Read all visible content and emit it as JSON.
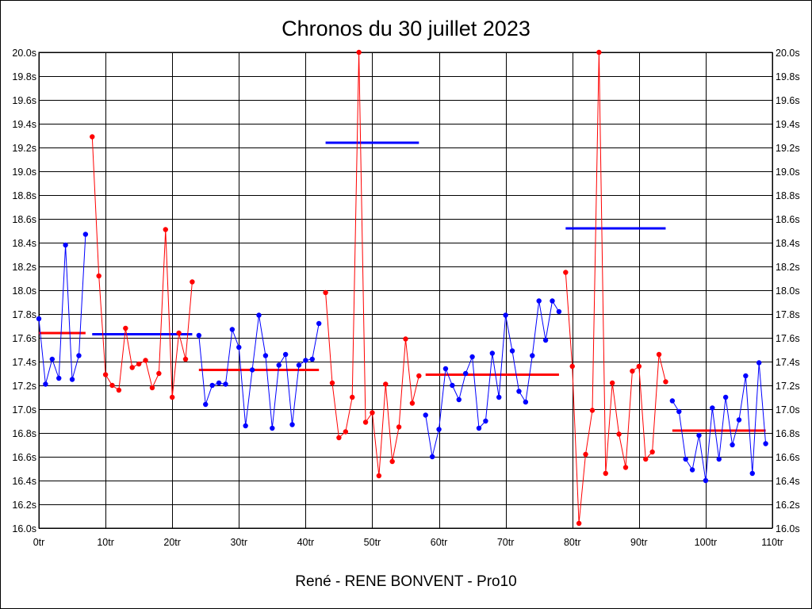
{
  "chart_data": {
    "type": "line",
    "title": "Chronos du 30 juillet 2023",
    "footer": "René - RENE BONVENT - Pro10",
    "xlabel": "",
    "ylabel": "",
    "xlim": [
      0,
      110
    ],
    "ylim": [
      16.0,
      20.0
    ],
    "grid": true,
    "x_ticks": [
      0,
      10,
      20,
      30,
      40,
      50,
      60,
      70,
      80,
      90,
      100,
      110
    ],
    "x_tick_labels": [
      "0tr",
      "10tr",
      "20tr",
      "30tr",
      "40tr",
      "50tr",
      "60tr",
      "70tr",
      "80tr",
      "90tr",
      "100tr",
      "110tr"
    ],
    "y_ticks": [
      16.0,
      16.2,
      16.4,
      16.6,
      16.8,
      17.0,
      17.2,
      17.4,
      17.6,
      17.8,
      18.0,
      18.2,
      18.4,
      18.6,
      18.8,
      19.0,
      19.2,
      19.4,
      19.6,
      19.8,
      20.0
    ],
    "y_tick_labels": [
      "16.0s",
      "16.2s",
      "16.4s",
      "16.6s",
      "16.8s",
      "17.0s",
      "17.2s",
      "17.4s",
      "17.6s",
      "17.8s",
      "18.0s",
      "18.2s",
      "18.4s",
      "18.6s",
      "18.8s",
      "19.0s",
      "19.2s",
      "19.4s",
      "19.6s",
      "19.8s",
      "20.0s"
    ],
    "colors": {
      "blue": "#0000ff",
      "red": "#ff0000",
      "grid": "#000000"
    },
    "series": [
      {
        "color": "#0000ff",
        "x": [
          0,
          1,
          2,
          3,
          4,
          5,
          6,
          7
        ],
        "y": [
          17.76,
          17.21,
          17.42,
          17.26,
          18.38,
          17.25,
          17.45,
          18.47
        ],
        "avg": {
          "x": [
            0,
            7
          ],
          "y": 17.64,
          "color": "#ff0000"
        }
      },
      {
        "color": "#ff0000",
        "x": [
          8,
          9,
          10,
          11,
          12,
          13,
          14,
          15,
          16,
          17,
          18,
          19,
          20,
          21,
          22,
          23
        ],
        "y": [
          19.29,
          18.12,
          17.29,
          17.2,
          17.16,
          17.68,
          17.35,
          17.38,
          17.41,
          17.18,
          17.3,
          18.51,
          17.1,
          17.64,
          17.42,
          18.07
        ],
        "avg": {
          "x": [
            8,
            23
          ],
          "y": 17.63,
          "color": "#0000ff"
        }
      },
      {
        "color": "#0000ff",
        "x": [
          24,
          25,
          26,
          27,
          28,
          29,
          30,
          31,
          32,
          33,
          34,
          35,
          36,
          37,
          38,
          39,
          40,
          41,
          42
        ],
        "y": [
          17.62,
          17.04,
          17.2,
          17.22,
          17.21,
          17.67,
          17.52,
          16.86,
          17.33,
          17.79,
          17.45,
          16.84,
          17.37,
          17.46,
          16.87,
          17.37,
          17.41,
          17.42,
          17.72
        ],
        "avg": {
          "x": [
            24,
            42
          ],
          "y": 17.33,
          "color": "#ff0000"
        }
      },
      {
        "color": "#ff0000",
        "x": [
          43,
          44,
          45,
          46,
          47,
          48,
          49,
          50,
          51,
          52,
          53,
          54,
          55,
          56,
          57
        ],
        "y": [
          17.98,
          17.22,
          16.76,
          16.81,
          17.1,
          20.0,
          16.89,
          16.97,
          16.44,
          17.21,
          16.56,
          16.85,
          17.59,
          17.05,
          17.28
        ],
        "avg": {
          "x": [
            43,
            57
          ],
          "y": 19.24,
          "color": "#0000ff"
        }
      },
      {
        "color": "#0000ff",
        "x": [
          58,
          59,
          60,
          61,
          62,
          63,
          64,
          65,
          66,
          67,
          68,
          69,
          70,
          71,
          72,
          73,
          74,
          75,
          76,
          77,
          78
        ],
        "y": [
          16.95,
          16.6,
          16.83,
          17.34,
          17.2,
          17.08,
          17.3,
          17.44,
          16.84,
          16.9,
          17.47,
          17.1,
          17.79,
          17.49,
          17.15,
          17.06,
          17.45,
          17.91,
          17.58,
          17.91,
          17.82
        ],
        "avg": {
          "x": [
            58,
            78
          ],
          "y": 17.29,
          "color": "#ff0000"
        }
      },
      {
        "color": "#ff0000",
        "x": [
          79,
          80,
          81,
          82,
          83,
          84,
          85,
          86,
          87,
          88,
          89,
          90,
          91,
          92,
          93,
          94
        ],
        "y": [
          18.15,
          17.36,
          16.04,
          16.62,
          16.99,
          20.0,
          16.46,
          17.22,
          16.79,
          16.51,
          17.32,
          17.36,
          16.58,
          16.64,
          17.46,
          17.23
        ],
        "avg": {
          "x": [
            79,
            94
          ],
          "y": 18.52,
          "color": "#0000ff"
        }
      },
      {
        "color": "#0000ff",
        "x": [
          95,
          96,
          97,
          98,
          99,
          100,
          101,
          102,
          103,
          104,
          105,
          106,
          107,
          108,
          109
        ],
        "y": [
          17.07,
          16.98,
          16.58,
          16.49,
          16.78,
          16.4,
          17.01,
          16.58,
          17.1,
          16.7,
          16.91,
          17.28,
          16.46,
          17.39,
          16.71
        ],
        "avg": {
          "x": [
            95,
            109
          ],
          "y": 16.82,
          "color": "#ff0000"
        }
      }
    ]
  }
}
